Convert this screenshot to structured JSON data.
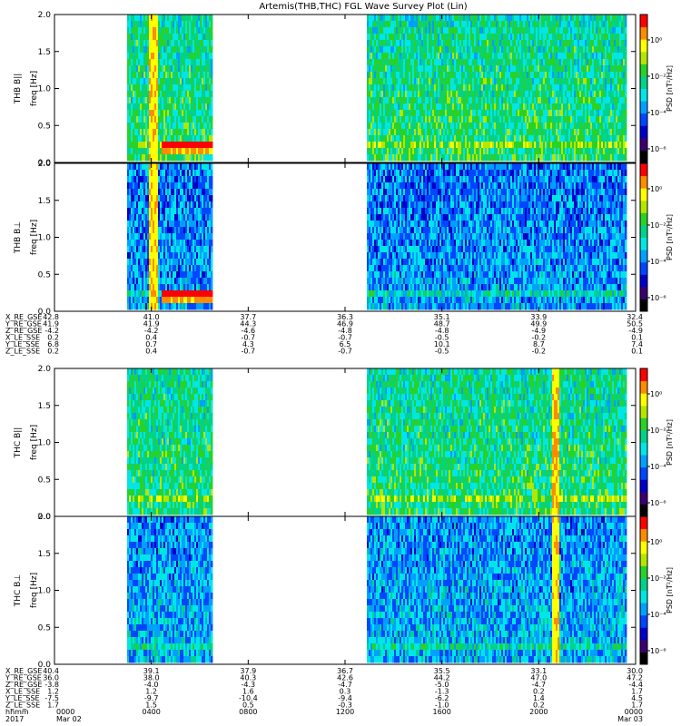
{
  "title": "Artemis(THB,THC) FGL Wave Survey Plot (Lin)",
  "chart_data": {
    "type": "heatmap",
    "title": "Artemis(THB,THC) FGL Wave Survey Plot (Lin)",
    "x_ticks": [
      "0000",
      "0400",
      "0800",
      "1200",
      "1600",
      "2000",
      "0000"
    ],
    "x_tick_dates": [
      "Mar 02",
      "",
      "",
      "",
      "",
      "",
      "Mar 03"
    ],
    "x_row_labels": [
      "hhmm",
      "2017"
    ],
    "colormap": [
      "#000000",
      "#3b0070",
      "#0000c8",
      "#0046ff",
      "#00a0ff",
      "#00e6e6",
      "#00d28c",
      "#28d228",
      "#b4e600",
      "#ffff00",
      "#ff8c00",
      "#ff0000"
    ],
    "panels": [
      {
        "id": "thb-bpar",
        "probe_label": "THB B||",
        "ylabel": "freq [Hz]",
        "cbar_label": "PSD [nT²/Hz]",
        "cbar_ticks": [
          "10⁰",
          "10⁻²",
          "10⁻⁴",
          "10⁻⁶"
        ],
        "ylim": [
          0.0,
          2.0
        ],
        "y_ticks": [
          "0.0",
          "0.5",
          "1.0",
          "1.5",
          "2.0"
        ],
        "data_ranges_hours": [
          [
            3.0,
            6.5
          ],
          [
            12.9,
            23.6
          ]
        ],
        "base_level": 0.52,
        "bright_band_hours": [
          3.9,
          4.2
        ],
        "low_band_hours": [
          4.4,
          6.5
        ]
      },
      {
        "id": "thb-bperp",
        "probe_label": "THB B⊥",
        "ylabel": "freq [Hz]",
        "cbar_label": "PSD [nT²/Hz]",
        "cbar_ticks": [
          "10⁰",
          "10⁻²",
          "10⁻⁴",
          "10⁻⁶"
        ],
        "ylim": [
          0.0,
          2.0
        ],
        "y_ticks": [
          "0.0",
          "0.5",
          "1.0",
          "1.5",
          "2.0"
        ],
        "data_ranges_hours": [
          [
            3.0,
            6.5
          ],
          [
            12.9,
            23.6
          ]
        ],
        "base_level": 0.33,
        "bright_band_hours": [
          3.9,
          4.2
        ],
        "low_band_hours": [
          4.4,
          6.5
        ]
      },
      {
        "id": "thc-bpar",
        "probe_label": "THC B||",
        "ylabel": "freq [Hz]",
        "cbar_label": "PSD [nT²/Hz]",
        "cbar_ticks": [
          "10⁰",
          "10⁻²",
          "10⁻⁴",
          "10⁻⁶"
        ],
        "ylim": [
          0.0,
          2.0
        ],
        "y_ticks": [
          "0.0",
          "0.5",
          "1.0",
          "1.5",
          "2.0"
        ],
        "data_ranges_hours": [
          [
            3.0,
            6.5
          ],
          [
            12.9,
            23.6
          ]
        ],
        "base_level": 0.52,
        "bright_band_hours": [
          20.5,
          20.8
        ],
        "low_band_hours": null
      },
      {
        "id": "thc-bperp",
        "probe_label": "THC B⊥",
        "ylabel": "freq [Hz]",
        "cbar_label": "PSD [nT²/Hz]",
        "cbar_ticks": [
          "10⁰",
          "10⁻²",
          "10⁻⁴",
          "10⁻⁶"
        ],
        "ylim": [
          0.0,
          2.0
        ],
        "y_ticks": [
          "0.0",
          "0.5",
          "1.0",
          "1.5",
          "2.0"
        ],
        "data_ranges_hours": [
          [
            3.0,
            6.5
          ],
          [
            12.9,
            23.6
          ]
        ],
        "base_level": 0.36,
        "bright_band_hours": [
          20.5,
          20.8
        ],
        "low_band_hours": null
      }
    ],
    "ephemeris": [
      {
        "id": "thb",
        "labels": [
          "X_RE_GSE",
          "Y_RE_GSE",
          "Z_RE_GSE",
          "X_LE_SSE",
          "Y_LE_SSE",
          "Z_LE_SSE"
        ],
        "rows": [
          [
            "42.8",
            "41.0",
            "37.7",
            "36.3",
            "35.1",
            "33.9",
            "32.4"
          ],
          [
            "41.9",
            "41.9",
            "44.3",
            "46.9",
            "48.7",
            "49.9",
            "50.5"
          ],
          [
            "-4.2",
            "-4.2",
            "-4.6",
            "-4.8",
            "-4.8",
            "-4.9",
            "-4.9"
          ],
          [
            "0.2",
            "0.4",
            "-0.7",
            "-0.7",
            "-0.5",
            "-0.2",
            "0.1"
          ],
          [
            "6.8",
            "0.7",
            "4.3",
            "6.5",
            "10.1",
            "8.7",
            "7.4"
          ],
          [
            "0.2",
            "0.4",
            "-0.7",
            "-0.7",
            "-0.5",
            "-0.2",
            "0.1"
          ]
        ]
      },
      {
        "id": "thc",
        "labels": [
          "X_RE_GSE",
          "Y_RE_GSE",
          "Z_RE_GSE",
          "X_LE_SSE",
          "Y_LE_SSE",
          "Z_LE_SSE"
        ],
        "rows": [
          [
            "40.4",
            "39.1",
            "37.9",
            "36.7",
            "35.5",
            "33.1",
            "30.0"
          ],
          [
            "36.0",
            "38.0",
            "40.3",
            "42.6",
            "44.2",
            "47.0",
            "47.2"
          ],
          [
            "-3.8",
            "-4.0",
            "-4.3",
            "-4.7",
            "-5.0",
            "-4.7",
            "-4.4"
          ],
          [
            "1.2",
            "1.2",
            "1.6",
            "0.3",
            "-1.3",
            "0.2",
            "1.7"
          ],
          [
            "-7.5",
            "-9.7",
            "-10.4",
            "-9.4",
            "-6.2",
            "1.4",
            "4.5"
          ],
          [
            "1.7",
            "1.5",
            "0.5",
            "-0.3",
            "-1.0",
            "0.2",
            "1.7"
          ]
        ]
      }
    ]
  }
}
